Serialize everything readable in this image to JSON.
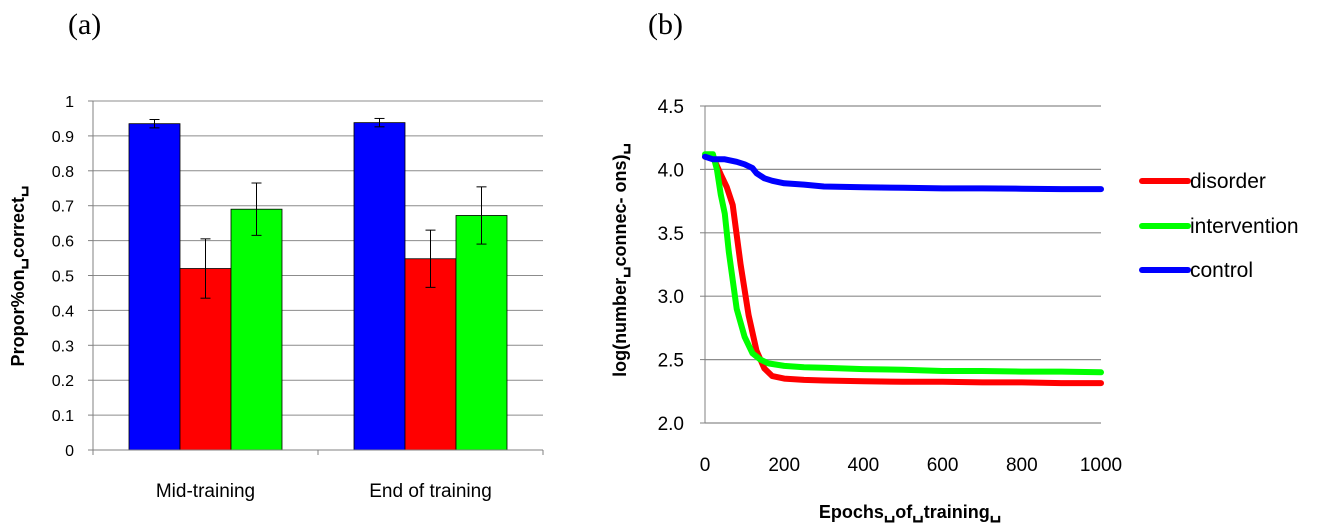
{
  "panels": {
    "a_label": "(a)",
    "b_label": "(b)"
  },
  "chart_data": [
    {
      "type": "bar",
      "ylabel": "Propor%on␣correct␣",
      "ylim": [
        0,
        1
      ],
      "yticks": [
        "0",
        "0.1",
        "0.2",
        "0.3",
        "0.4",
        "0.5",
        "0.6",
        "0.7",
        "0.8",
        "0.9",
        "1"
      ],
      "ytick_values": [
        0,
        0.1,
        0.2,
        0.3,
        0.4,
        0.5,
        0.6,
        0.7,
        0.8,
        0.9,
        1
      ],
      "grid": true,
      "categories": [
        "Mid-training",
        "End of training"
      ],
      "series": [
        {
          "color": "#0000ff",
          "values": [
            0.935,
            0.938
          ],
          "errors": [
            0.012,
            0.012
          ]
        },
        {
          "color": "#ff0000",
          "values": [
            0.52,
            0.548
          ],
          "errors": [
            0.085,
            0.082
          ]
        },
        {
          "color": "#00ff00",
          "values": [
            0.69,
            0.672
          ],
          "errors": [
            0.075,
            0.082
          ]
        }
      ]
    },
    {
      "type": "line",
      "xlabel": "Epochs␣of␣training␣",
      "ylabel": "log(number␣connec- ons)␣",
      "xlim": [
        0,
        1000
      ],
      "ylim": [
        2.0,
        4.5
      ],
      "xticks": [
        "0",
        "200",
        "400",
        "600",
        "800",
        "1000"
      ],
      "xtick_values": [
        0,
        200,
        400,
        600,
        800,
        1000
      ],
      "yticks": [
        "2.0",
        "2.5",
        "3.0",
        "3.5",
        "4.0",
        "4.5"
      ],
      "ytick_values": [
        2.0,
        2.5,
        3.0,
        3.5,
        4.0,
        4.5
      ],
      "grid": true,
      "legend_position": "right",
      "series": [
        {
          "name": "disorder",
          "color": "#ff0000",
          "x": [
            0,
            20,
            40,
            55,
            70,
            90,
            110,
            130,
            150,
            170,
            200,
            250,
            300,
            400,
            500,
            600,
            700,
            800,
            900,
            1000
          ],
          "y": [
            4.1,
            4.1,
            3.96,
            3.86,
            3.72,
            3.25,
            2.85,
            2.57,
            2.43,
            2.37,
            2.35,
            2.34,
            2.335,
            2.33,
            2.325,
            2.325,
            2.32,
            2.32,
            2.315,
            2.315
          ]
        },
        {
          "name": "intervention",
          "color": "#00ff00",
          "x": [
            0,
            20,
            30,
            40,
            50,
            60,
            80,
            100,
            120,
            140,
            160,
            200,
            250,
            300,
            400,
            500,
            600,
            700,
            800,
            900,
            1000
          ],
          "y": [
            4.12,
            4.12,
            4.0,
            3.8,
            3.65,
            3.35,
            2.9,
            2.68,
            2.55,
            2.5,
            2.47,
            2.45,
            2.44,
            2.435,
            2.425,
            2.42,
            2.41,
            2.41,
            2.405,
            2.405,
            2.4
          ]
        },
        {
          "name": "control",
          "color": "#0000ff",
          "x": [
            0,
            20,
            50,
            80,
            100,
            120,
            130,
            150,
            170,
            200,
            250,
            300,
            400,
            500,
            600,
            700,
            800,
            900,
            1000
          ],
          "y": [
            4.1,
            4.08,
            4.08,
            4.06,
            4.04,
            4.01,
            3.97,
            3.93,
            3.91,
            3.89,
            3.88,
            3.865,
            3.86,
            3.855,
            3.85,
            3.85,
            3.848,
            3.845,
            3.845
          ]
        }
      ]
    }
  ]
}
